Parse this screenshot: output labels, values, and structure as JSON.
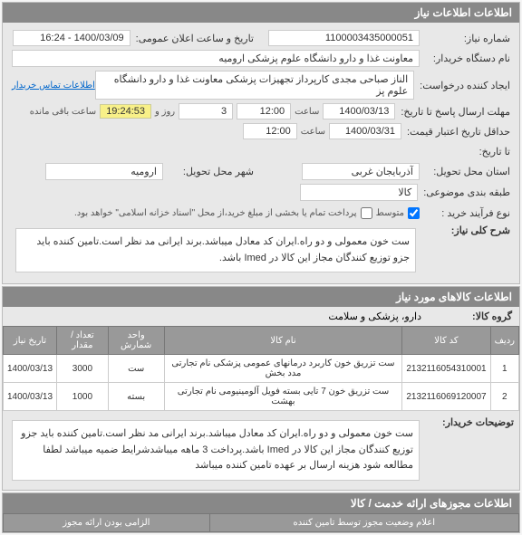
{
  "sections": {
    "info": "اطلاعات اطلاعات نیاز",
    "items": "اطلاعات کالاهای مورد نیاز",
    "permits": "اطلاعات مجوزهای ارائه خدمت / کالا",
    "status": "اعلام وضعیت مجوز توسط تامین کننده"
  },
  "fields": {
    "need_no_label": "شماره نیاز:",
    "need_no": "1100003435000051",
    "announce_label": "تاریخ و ساعت اعلان عمومی:",
    "announce": "1400/03/09 - 16:24",
    "buyer_org_label": "نام دستگاه خریدار:",
    "buyer_org": "معاونت غذا و دارو دانشگاه علوم پزشکی ارومیه",
    "creator_label": "ایجاد کننده درخواست:",
    "creator": "الناز صباحی مجدی کارپرداز تجهیزات پزشکی معاونت غذا و دارو دانشگاه علوم پز",
    "contact_link": "اطلاعات تماس خریدار",
    "deadline_label": "مهلت ارسال پاسخ تا تاریخ:",
    "deadline_date": "1400/03/13",
    "time_word": "ساعت",
    "deadline_time": "12:00",
    "days_count": "3",
    "days_word": "روز و",
    "countdown": "19:24:53",
    "remaining": "ساعت باقی مانده",
    "validity_label": "حداقل تاریخ اعتبار قیمت:",
    "validity_date": "1400/03/31",
    "validity_time": "12:00",
    "from_date_label": "تا تاریخ:",
    "province_label": "استان محل تحویل:",
    "province": "آذربایجان غربی",
    "city_label": "شهر محل تحویل:",
    "city": "ارومیه",
    "budget_label": "طبقه بندی موضوعی:",
    "budget": "کالا",
    "process_label": "نوع فرآیند خرید :",
    "process_chk": "متوسط",
    "process_note": "پرداخت تمام یا بخشی از مبلغ خرید،از محل \"اسناد خزانه اسلامی\" خواهد بود.",
    "summary_label": "شرح کلی نیاز:",
    "summary": "ست خون معمولی و دو راه.ایران کد معادل میباشد.برند ایرانی مد نظر است.تامین کننده باید جزو توزیع کنندگان مجاز این کالا در Imed باشد.",
    "group_label": "گروه کالا:",
    "group": "دارو، پزشکی و سلامت",
    "notes_label": "توضیحات خریدار:",
    "notes": "ست خون معمولی و دو راه.ایران کد معادل میباشد.برند ایرانی مد نظر است.تامین کننده باید جزو توزیع کنندگان مجاز این کالا در Imed باشد.پرداخت 3 ماهه میباشدشرایط ضمیه میباشد لطفا مطالعه شود هزینه ارسال بر عهده تامین کننده میباشد"
  },
  "table": {
    "headers": [
      "ردیف",
      "کد کالا",
      "نام کالا",
      "واحد شمارش",
      "تعداد / مقدار",
      "تاریخ نیاز"
    ],
    "rows": [
      [
        "1",
        "2132116054310001",
        "ست تزریق خون کاربرد درمانهای عمومی پزشکی نام تجارتی مدد بخش",
        "ست",
        "3000",
        "1400/03/13"
      ],
      [
        "2",
        "2132116069120007",
        "ست تزریق خون 7 تایی بسته فویل آلومینیومی نام تجارتی بهشت",
        "بسته",
        "1000",
        "1400/03/13"
      ]
    ]
  },
  "status_sub": "الزامی بودن ارائه مجوز",
  "colors": {
    "header_bg": "#888888",
    "panel_bg": "#e8e8e8",
    "badge_bg": "#f8f088"
  }
}
